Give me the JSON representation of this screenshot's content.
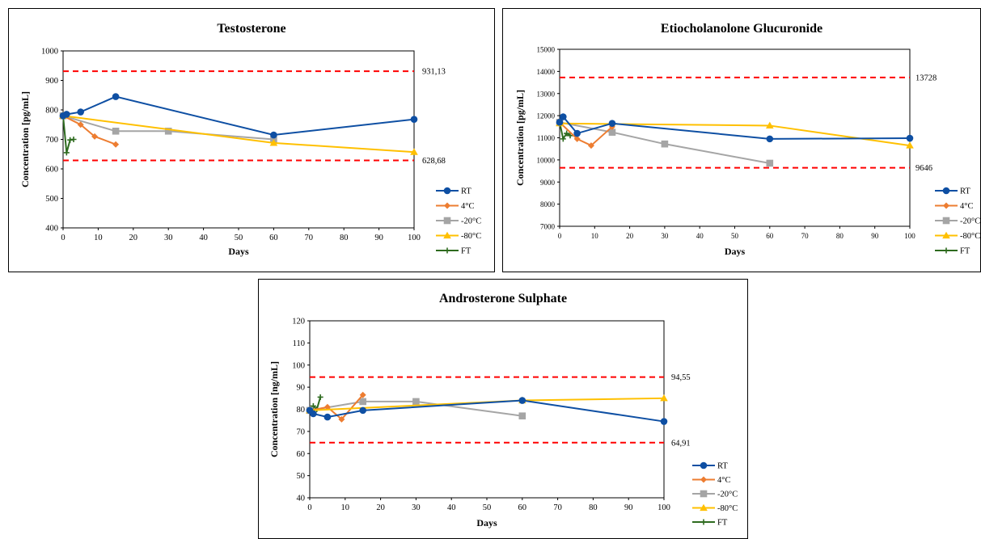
{
  "series_styles": [
    {
      "name": "RT",
      "color": "#0e4fa3",
      "marker": "circle"
    },
    {
      "name": "4°C",
      "color": "#ed7d31",
      "marker": "diamond"
    },
    {
      "name": "-20°C",
      "color": "#a5a5a5",
      "marker": "square"
    },
    {
      "name": "-80°C",
      "color": "#ffc000",
      "marker": "triangle"
    },
    {
      "name": "FT",
      "color": "#2e6b1f",
      "marker": "plus"
    }
  ],
  "limit_color": "#ff0000",
  "chart_data": [
    {
      "type": "line",
      "title": "Testosterone",
      "xlabel": "Days",
      "ylabel": "Concentration [pg/mL]",
      "xlim": [
        0,
        100
      ],
      "ylim": [
        400,
        1000
      ],
      "xticks": [
        "0",
        "10",
        "20",
        "30",
        "40",
        "50",
        "60",
        "70",
        "80",
        "90",
        "100"
      ],
      "yticks": [
        "400",
        "500",
        "600",
        "700",
        "800",
        "900",
        "1000"
      ],
      "legend_position": "right",
      "limits": [
        {
          "value": 931.13,
          "label": "931,13"
        },
        {
          "value": 628.68,
          "label": "628,68"
        }
      ],
      "series": [
        {
          "name": "RT",
          "x": [
            0,
            1,
            5,
            15,
            60,
            100
          ],
          "y": [
            780,
            785,
            793,
            845,
            715,
            768
          ]
        },
        {
          "name": "4°C",
          "x": [
            0,
            5,
            9,
            15
          ],
          "y": [
            780,
            750,
            710,
            683
          ]
        },
        {
          "name": "-20°C",
          "x": [
            0,
            15,
            30,
            60
          ],
          "y": [
            780,
            728,
            728,
            700
          ]
        },
        {
          "name": "-80°C",
          "x": [
            0,
            60,
            100
          ],
          "y": [
            780,
            688,
            657
          ]
        },
        {
          "name": "FT",
          "x": [
            0,
            1,
            2,
            3
          ],
          "y": [
            780,
            655,
            698,
            700
          ]
        }
      ]
    },
    {
      "type": "line",
      "title": "Etiocholanolone Glucuronide",
      "xlabel": "Days",
      "ylabel": "Concentration [pg/mL]",
      "xlim": [
        0,
        100
      ],
      "ylim": [
        7000,
        15000
      ],
      "xticks": [
        "0",
        "10",
        "20",
        "30",
        "40",
        "50",
        "60",
        "70",
        "80",
        "90",
        "100"
      ],
      "yticks": [
        "7000",
        "8000",
        "9000",
        "10000",
        "11000",
        "12000",
        "13000",
        "14000",
        "15000"
      ],
      "legend_position": "right",
      "limits": [
        {
          "value": 13728,
          "label": "13728"
        },
        {
          "value": 9646,
          "label": "9646"
        }
      ],
      "series": [
        {
          "name": "RT",
          "x": [
            0,
            1,
            5,
            15,
            60,
            100
          ],
          "y": [
            11700,
            11950,
            11200,
            11650,
            10950,
            10980
          ]
        },
        {
          "name": "4°C",
          "x": [
            0,
            5,
            9,
            15
          ],
          "y": [
            11700,
            10950,
            10650,
            11500
          ]
        },
        {
          "name": "-20°C",
          "x": [
            0,
            15,
            30,
            60
          ],
          "y": [
            11700,
            11250,
            10720,
            9850
          ]
        },
        {
          "name": "-80°C",
          "x": [
            0,
            60,
            100
          ],
          "y": [
            11650,
            11550,
            10650
          ]
        },
        {
          "name": "FT",
          "x": [
            0,
            1,
            2,
            3
          ],
          "y": [
            11700,
            10950,
            11200,
            11100
          ]
        }
      ]
    },
    {
      "type": "line",
      "title": "Androsterone Sulphate",
      "xlabel": "Days",
      "ylabel": "Concentration [ng/mL]",
      "xlim": [
        0,
        100
      ],
      "ylim": [
        40,
        120
      ],
      "xticks": [
        "0",
        "10",
        "20",
        "30",
        "40",
        "50",
        "60",
        "70",
        "80",
        "90",
        "100"
      ],
      "yticks": [
        "40",
        "50",
        "60",
        "70",
        "80",
        "90",
        "100",
        "110",
        "120"
      ],
      "legend_position": "right",
      "limits": [
        {
          "value": 94.55,
          "label": "94,55"
        },
        {
          "value": 64.91,
          "label": "64,91"
        }
      ],
      "series": [
        {
          "name": "RT",
          "x": [
            0,
            1,
            5,
            15,
            60,
            100
          ],
          "y": [
            79.5,
            78,
            76.5,
            79.5,
            84,
            74.5
          ]
        },
        {
          "name": "4°C",
          "x": [
            0,
            5,
            9,
            15
          ],
          "y": [
            79.5,
            81,
            75.5,
            86.5
          ]
        },
        {
          "name": "-20°C",
          "x": [
            0,
            15,
            30,
            60
          ],
          "y": [
            79.5,
            83.5,
            83.5,
            77
          ]
        },
        {
          "name": "-80°C",
          "x": [
            0,
            60,
            100
          ],
          "y": [
            79.5,
            84,
            85
          ]
        },
        {
          "name": "FT",
          "x": [
            0,
            1,
            2,
            3
          ],
          "y": [
            79.5,
            81.5,
            80,
            85.5
          ]
        }
      ]
    }
  ]
}
